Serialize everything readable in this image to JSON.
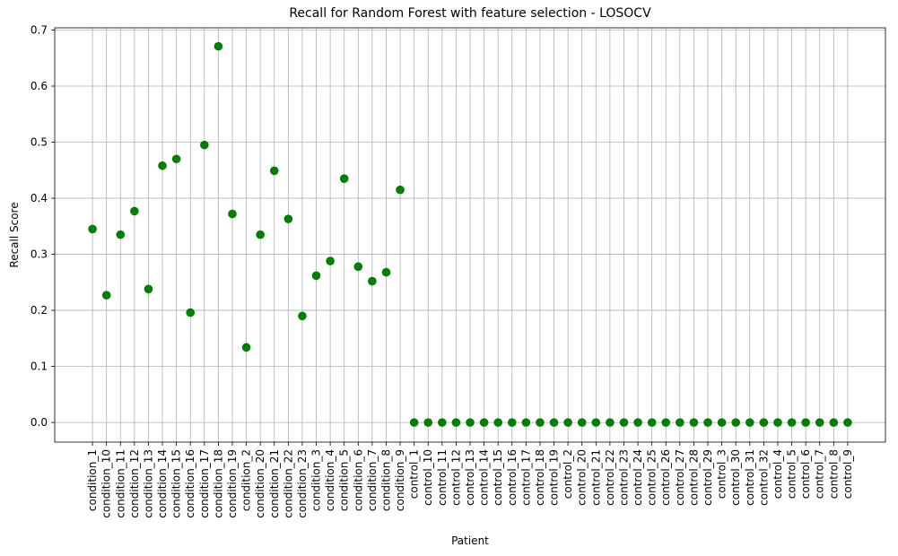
{
  "chart_data": {
    "type": "scatter",
    "title": "Recall for Random Forest with feature selection - LOSOCV",
    "x_label": "Patient",
    "y_label": "Recall Score",
    "categories": [
      "condition_1",
      "condition_10",
      "condition_11",
      "condition_12",
      "condition_13",
      "condition_14",
      "condition_15",
      "condition_16",
      "condition_17",
      "condition_18",
      "condition_19",
      "condition_2",
      "condition_20",
      "condition_21",
      "condition_22",
      "condition_23",
      "condition_3",
      "condition_4",
      "condition_5",
      "condition_6",
      "condition_7",
      "condition_8",
      "condition_9",
      "control_1",
      "control_10",
      "control_11",
      "control_12",
      "control_13",
      "control_14",
      "control_15",
      "control_16",
      "control_17",
      "control_18",
      "control_19",
      "control_2",
      "control_20",
      "control_21",
      "control_22",
      "control_23",
      "control_24",
      "control_25",
      "control_26",
      "control_27",
      "control_28",
      "control_29",
      "control_3",
      "control_30",
      "control_31",
      "control_32",
      "control_4",
      "control_5",
      "control_6",
      "control_7",
      "control_8",
      "control_9"
    ],
    "values": [
      0.345,
      0.227,
      0.335,
      0.377,
      0.238,
      0.458,
      0.47,
      0.196,
      0.495,
      0.671,
      0.372,
      0.134,
      0.335,
      0.449,
      0.363,
      0.19,
      0.262,
      0.288,
      0.435,
      0.278,
      0.252,
      0.268,
      0.415,
      0,
      0,
      0,
      0,
      0,
      0,
      0,
      0,
      0,
      0,
      0,
      0,
      0,
      0,
      0,
      0,
      0,
      0,
      0,
      0,
      0,
      0,
      0,
      0,
      0,
      0,
      0,
      0,
      0,
      0,
      0,
      0
    ],
    "color": "#008000",
    "ylim": [
      -0.035,
      0.704
    ],
    "yticks": [
      {
        "value": 0,
        "label": "0.0"
      },
      0.1,
      0.2,
      0.3,
      0.4,
      0.5,
      0.6,
      0.7
    ],
    "grid": true
  }
}
